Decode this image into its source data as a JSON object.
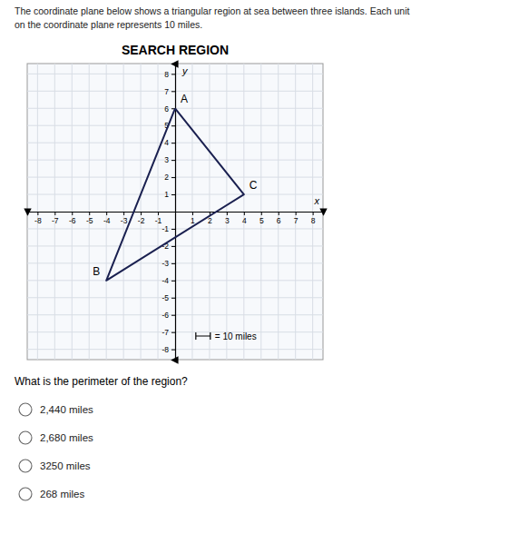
{
  "chart_data": {
    "type": "line",
    "title": "SEARCH REGION",
    "subtitle": [
      "The coordinate plane below shows a triangular region at sea between three islands. Each unit",
      "on the coordinate plane represents 10 miles."
    ],
    "x_label": "x",
    "y_label": "y",
    "x": [
      0,
      -4,
      4,
      0
    ],
    "values": [
      6,
      -4,
      1,
      6
    ],
    "color": "#1a2050",
    "annotations": [
      {
        "text": "A",
        "x": 0,
        "y": 6
      },
      {
        "text": "B",
        "x": -4,
        "y": -4
      },
      {
        "text": "C",
        "x": 4,
        "y": 1
      },
      {
        "text": "= 10 miles"
      }
    ],
    "question": "What is the perimeter of the region?",
    "answer_choices": [
      "2,440 miles",
      "2,680 miles",
      "3250 miles",
      "268 miles"
    ],
    "xlim": [
      -8.6,
      8.6
    ],
    "ylim": [
      -8.6,
      8.6
    ],
    "xticks": [
      -8,
      -7,
      -6,
      -5,
      -4,
      -3,
      -2,
      -1,
      1,
      2,
      3,
      4,
      5,
      6,
      7,
      8
    ],
    "yticks": [
      -8,
      -7,
      -6,
      -5,
      -4,
      -3,
      -2,
      -1,
      1,
      2,
      3,
      4,
      5,
      6,
      7,
      8
    ],
    "grid": true
  }
}
